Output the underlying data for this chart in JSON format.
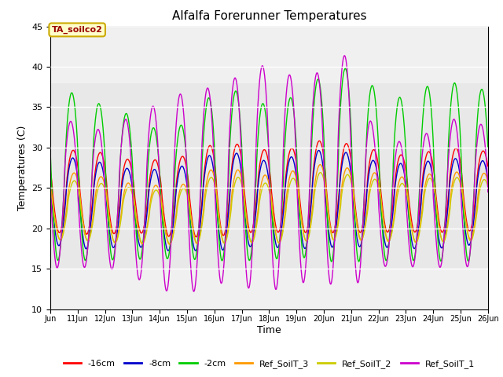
{
  "title": "Alfalfa Forerunner Temperatures",
  "ylabel": "Temperatures (C)",
  "xlabel": "Time",
  "ylim": [
    10,
    45
  ],
  "xlim": [
    10,
    26
  ],
  "annotation_text": "TA_soilco2",
  "annotation_bg": "#ffffcc",
  "annotation_edge": "#ccaa00",
  "annotation_text_color": "#990000",
  "bg_band_low": 15,
  "bg_band_high": 38,
  "bg_band_color": "#e8e8e8",
  "lines": [
    {
      "label": "-16cm",
      "color": "#ff0000"
    },
    {
      "label": "-8cm",
      "color": "#0000cc"
    },
    {
      "label": "-2cm",
      "color": "#00cc00"
    },
    {
      "label": "Ref_SoilT_3",
      "color": "#ff9900"
    },
    {
      "label": "Ref_SoilT_2",
      "color": "#cccc00"
    },
    {
      "label": "Ref_SoilT_1",
      "color": "#cc00cc"
    }
  ],
  "x_start_day": 10,
  "x_end_day": 26,
  "num_points": 3200,
  "figsize": [
    6.4,
    4.8
  ],
  "dpi": 100
}
